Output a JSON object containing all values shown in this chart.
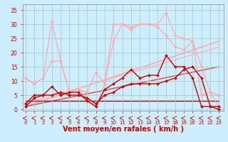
{
  "background_color": "#cceeff",
  "grid_color": "#aacccc",
  "xlabel": "Vent moyen/en rafales ( km/h )",
  "xlabel_color": "#cc0000",
  "xlabel_fontsize": 7,
  "ylabel_ticks": [
    0,
    5,
    10,
    15,
    20,
    25,
    30,
    35
  ],
  "xtick_labels": [
    "0",
    "1",
    "2",
    "3",
    "4",
    "5",
    "6",
    "7",
    "8",
    "9",
    "10",
    "11",
    "12",
    "13",
    "14",
    "15",
    "17",
    "18",
    "19",
    "20",
    "21",
    "22",
    "23"
  ],
  "xtick_positions": [
    0,
    1,
    2,
    3,
    4,
    5,
    6,
    7,
    8,
    9,
    10,
    11,
    12,
    13,
    14,
    15,
    16,
    17,
    18,
    19,
    20,
    21,
    22
  ],
  "xlim": [
    -0.3,
    22.5
  ],
  "ylim": [
    -0.5,
    37
  ],
  "series": [
    {
      "x": [
        0,
        1,
        2,
        3,
        4,
        5,
        6,
        7,
        8,
        9,
        10,
        11,
        12,
        13,
        14,
        15,
        16,
        17,
        18,
        19,
        20,
        21,
        22
      ],
      "y": [
        11,
        9,
        11,
        31,
        17,
        6,
        7,
        4,
        1,
        9,
        30,
        30,
        29,
        30,
        30,
        30,
        34,
        26,
        25,
        24,
        5,
        6,
        1
      ],
      "color": "#ffaaaa",
      "lw": 0.9,
      "marker": "D",
      "ms": 2.0,
      "zorder": 2
    },
    {
      "x": [
        0,
        1,
        2,
        3,
        4,
        5,
        6,
        7,
        8,
        9,
        10,
        11,
        12,
        13,
        14,
        15,
        16,
        17,
        18,
        19,
        20,
        21,
        22
      ],
      "y": [
        11,
        9,
        11,
        17,
        17,
        6,
        7,
        6,
        13,
        9,
        24,
        30,
        28,
        30,
        30,
        29,
        26,
        22,
        21,
        24,
        15,
        6,
        5
      ],
      "color": "#ffaaaa",
      "lw": 0.9,
      "marker": "D",
      "ms": 2.0,
      "zorder": 2
    },
    {
      "x": [
        0,
        1,
        2,
        3,
        4,
        5,
        6,
        7,
        8,
        9,
        10,
        11,
        12,
        13,
        14,
        15,
        16,
        17,
        18,
        19,
        20,
        21,
        22
      ],
      "y": [
        2,
        5,
        5,
        8,
        5,
        6,
        6,
        3,
        1,
        7,
        9,
        11,
        14,
        11,
        12,
        12,
        19,
        15,
        15,
        11,
        1,
        1,
        1
      ],
      "color": "#cc0000",
      "lw": 1.0,
      "marker": "D",
      "ms": 2.0,
      "zorder": 3
    },
    {
      "x": [
        0,
        1,
        2,
        3,
        4,
        5,
        6,
        7,
        8,
        9,
        10,
        11,
        12,
        13,
        14,
        15,
        16,
        17,
        18,
        19,
        20,
        21,
        22
      ],
      "y": [
        1,
        4,
        5,
        5,
        6,
        5,
        5,
        4,
        2,
        5,
        6,
        8,
        9,
        9,
        9,
        9,
        10,
        11,
        14,
        15,
        11,
        1,
        0
      ],
      "color": "#cc0000",
      "lw": 1.0,
      "marker": "D",
      "ms": 2.0,
      "zorder": 3
    },
    {
      "x": [
        0,
        22
      ],
      "y": [
        1,
        24
      ],
      "color": "#ffaaaa",
      "lw": 1.2,
      "marker": null,
      "ms": 0,
      "zorder": 1
    },
    {
      "x": [
        0,
        22
      ],
      "y": [
        2,
        22
      ],
      "color": "#ffbbbb",
      "lw": 1.2,
      "marker": null,
      "ms": 0,
      "zorder": 1
    },
    {
      "x": [
        0,
        22
      ],
      "y": [
        1,
        15
      ],
      "color": "#dd4444",
      "lw": 1.0,
      "marker": null,
      "ms": 0,
      "zorder": 1
    },
    {
      "x": [
        0,
        22
      ],
      "y": [
        3,
        3
      ],
      "color": "#aa0000",
      "lw": 1.0,
      "marker": null,
      "ms": 0,
      "zorder": 1
    }
  ],
  "arrow_color": "#cc0000",
  "arrow_lw": 0.6,
  "tick_fontsize": 5.0,
  "tick_color": "#cc0000",
  "ytick_fontsize": 5.5,
  "ytick_color": "#cc0000"
}
